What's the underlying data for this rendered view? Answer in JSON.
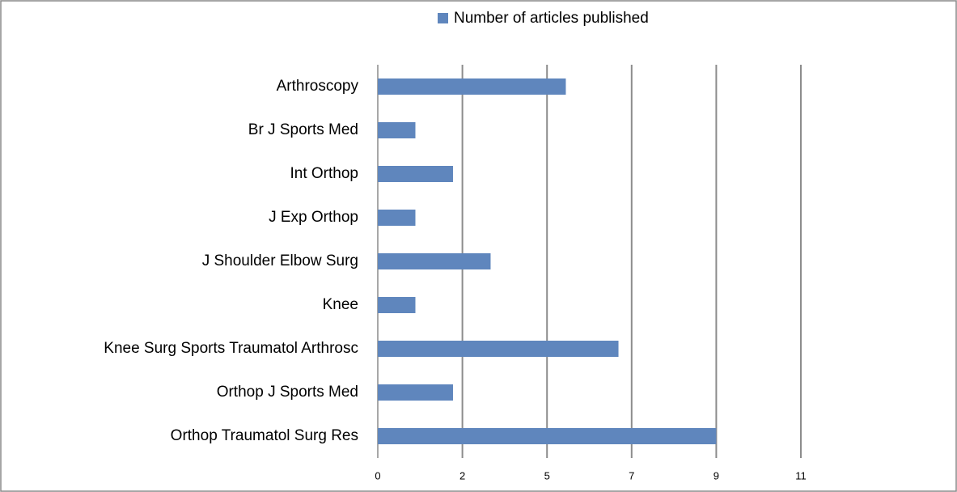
{
  "chart_data": {
    "type": "bar",
    "orientation": "horizontal",
    "categories": [
      "Arthroscopy",
      "Br J Sports Med",
      "Int Orthop",
      "J Exp Orthop",
      "J Shoulder Elbow Surg",
      "Knee",
      "Knee Surg Sports Traumatol Arthrosc",
      "Orthop J Sports Med",
      "Orthop Traumatol Surg Res"
    ],
    "series": [
      {
        "name": "Number of articles published",
        "color": "#5f86bd",
        "values": [
          5,
          1,
          2,
          1,
          3,
          1,
          6.4,
          2,
          9
        ]
      }
    ],
    "xlim": [
      0,
      11.25
    ],
    "xticks": [
      0,
      {
        "value": 2.25,
        "label": "2"
      },
      {
        "value": 4.5,
        "label": "5"
      },
      {
        "value": 6.75,
        "label": "7"
      },
      9,
      {
        "value": 11.25,
        "label": "11"
      }
    ],
    "grid": true,
    "legend": "top"
  }
}
